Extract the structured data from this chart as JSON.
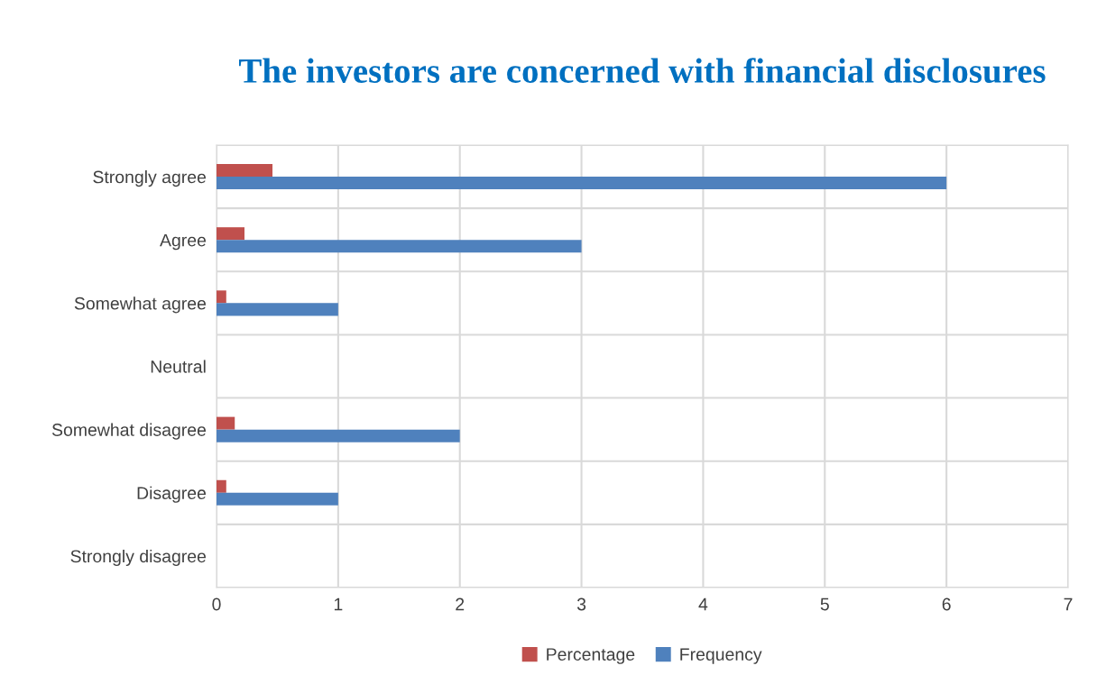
{
  "chart_data": {
    "type": "bar",
    "orientation": "horizontal",
    "title": "The investors are concerned with financial disclosures",
    "categories": [
      "Strongly agree",
      "Agree",
      "Somewhat agree",
      "Neutral",
      "Somewhat disagree",
      "Disagree",
      "Strongly disagree"
    ],
    "series": [
      {
        "name": "Percentage",
        "color": "#c0504d",
        "values": [
          0.46,
          0.23,
          0.08,
          null,
          0.15,
          0.08,
          null
        ]
      },
      {
        "name": "Frequency",
        "color": "#4f81bd",
        "values": [
          6,
          3,
          1,
          null,
          2,
          1,
          null
        ]
      }
    ],
    "xlim": [
      0,
      7
    ],
    "xticks": [
      0,
      1,
      2,
      3,
      4,
      5,
      6,
      7
    ],
    "grid": true,
    "legend": "bottom"
  }
}
